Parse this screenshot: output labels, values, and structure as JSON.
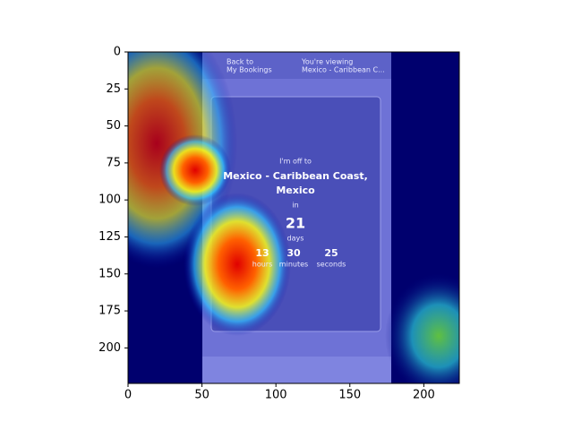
{
  "chart_data": {
    "type": "image",
    "xlim": [
      0,
      224
    ],
    "ylim": [
      224,
      0
    ],
    "xticks": [
      0,
      50,
      100,
      150,
      200
    ],
    "yticks": [
      0,
      25,
      50,
      75,
      100,
      125,
      150,
      175,
      200
    ],
    "screen_texts": {
      "back_label": "Back to",
      "back_target": "My Bookings",
      "viewing_label": "You're viewing",
      "viewing_target": "Mexico - Caribbean C...",
      "intro": "I'm off to",
      "destination_line1": "Mexico - Caribbean Coast,",
      "destination_line2": "Mexico",
      "in": "in",
      "days_value": "21",
      "days_label": "days",
      "hours_value": "13",
      "hours_label": "hours",
      "minutes_value": "30",
      "minutes_label": "minutes",
      "seconds_value": "25",
      "seconds_label": "seconds"
    }
  }
}
